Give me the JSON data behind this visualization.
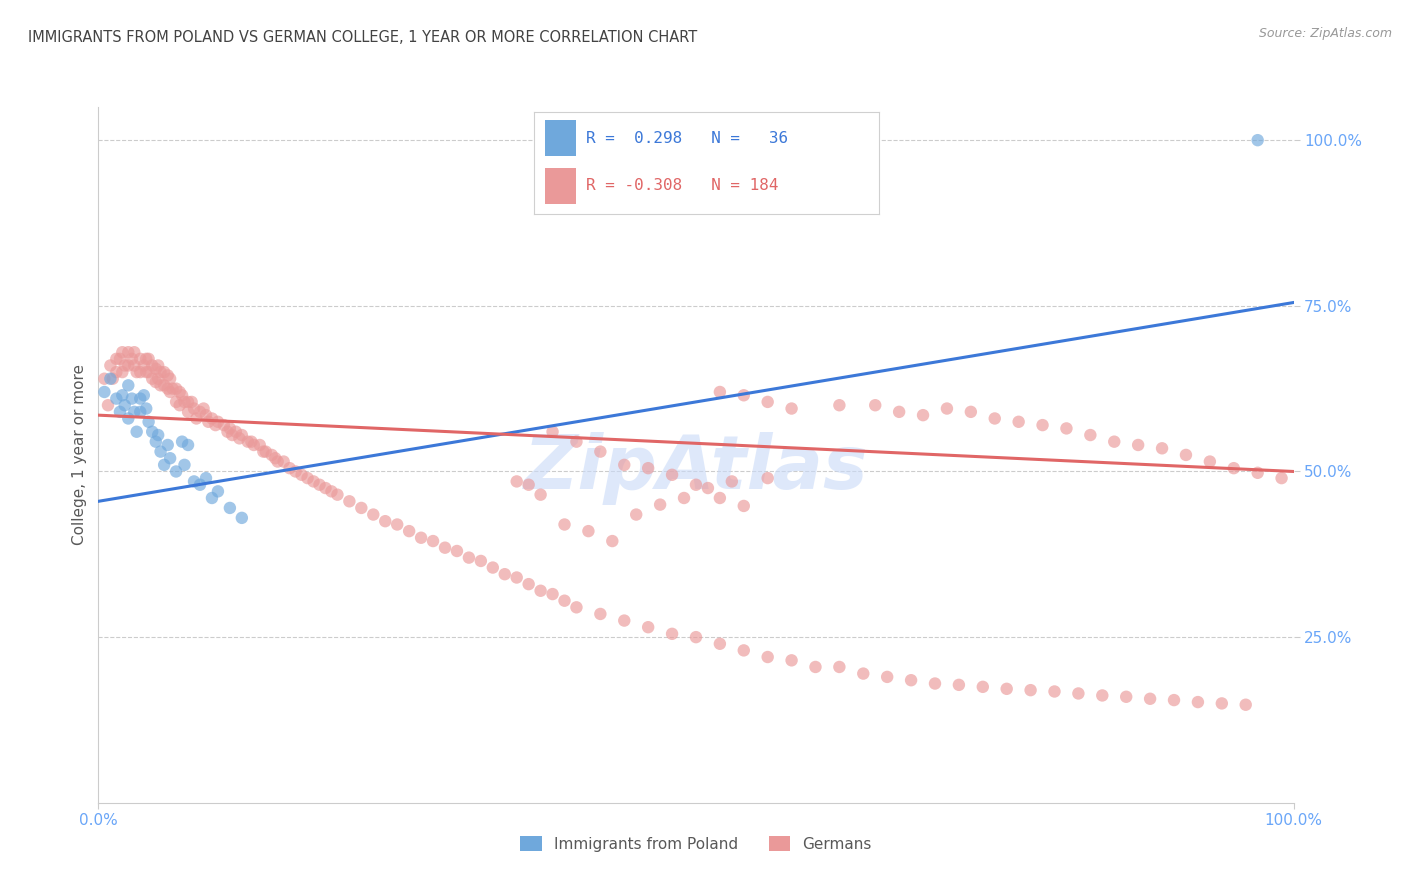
{
  "title": "IMMIGRANTS FROM POLAND VS GERMAN COLLEGE, 1 YEAR OR MORE CORRELATION CHART",
  "source_text": "Source: ZipAtlas.com",
  "ylabel": "College, 1 year or more",
  "xlim": [
    0.0,
    1.0
  ],
  "ylim": [
    0.0,
    1.05
  ],
  "x_tick_labels": [
    "0.0%",
    "100.0%"
  ],
  "x_tick_positions": [
    0.0,
    1.0
  ],
  "y_tick_labels": [
    "25.0%",
    "50.0%",
    "75.0%",
    "100.0%"
  ],
  "y_tick_positions": [
    0.25,
    0.5,
    0.75,
    1.0
  ],
  "color_blue": "#6fa8dc",
  "color_pink": "#ea9999",
  "color_blue_line": "#3c78d8",
  "color_pink_line": "#e06666",
  "title_color": "#434343",
  "source_color": "#999999",
  "axis_label_color": "#595959",
  "tick_label_color": "#6aa6f8",
  "grid_color": "#cccccc",
  "watermark_color": "#c9daf8",
  "background_color": "#ffffff",
  "blue_line_y_start": 0.455,
  "blue_line_y_end": 0.755,
  "pink_line_y_start": 0.585,
  "pink_line_y_end": 0.5,
  "marker_size": 80,
  "marker_alpha": 0.65,
  "line_width": 2.2,
  "blue_scatter_x": [
    0.005,
    0.01,
    0.015,
    0.018,
    0.02,
    0.022,
    0.025,
    0.025,
    0.028,
    0.03,
    0.032,
    0.035,
    0.035,
    0.038,
    0.04,
    0.042,
    0.045,
    0.048,
    0.05,
    0.052,
    0.055,
    0.058,
    0.06,
    0.065,
    0.07,
    0.072,
    0.075,
    0.08,
    0.085,
    0.09,
    0.095,
    0.1,
    0.11,
    0.12,
    0.97
  ],
  "blue_scatter_y": [
    0.62,
    0.64,
    0.61,
    0.59,
    0.615,
    0.6,
    0.63,
    0.58,
    0.61,
    0.59,
    0.56,
    0.61,
    0.59,
    0.615,
    0.595,
    0.575,
    0.56,
    0.545,
    0.555,
    0.53,
    0.51,
    0.54,
    0.52,
    0.5,
    0.545,
    0.51,
    0.54,
    0.485,
    0.48,
    0.49,
    0.46,
    0.47,
    0.445,
    0.43,
    1.0
  ],
  "pink_scatter_x": [
    0.005,
    0.008,
    0.01,
    0.012,
    0.015,
    0.015,
    0.018,
    0.02,
    0.02,
    0.022,
    0.025,
    0.025,
    0.028,
    0.03,
    0.03,
    0.032,
    0.035,
    0.035,
    0.038,
    0.04,
    0.04,
    0.042,
    0.042,
    0.045,
    0.045,
    0.048,
    0.048,
    0.05,
    0.05,
    0.052,
    0.052,
    0.055,
    0.055,
    0.058,
    0.058,
    0.06,
    0.06,
    0.062,
    0.065,
    0.065,
    0.068,
    0.068,
    0.07,
    0.072,
    0.075,
    0.075,
    0.078,
    0.08,
    0.082,
    0.085,
    0.088,
    0.09,
    0.092,
    0.095,
    0.098,
    0.1,
    0.105,
    0.108,
    0.11,
    0.112,
    0.115,
    0.118,
    0.12,
    0.125,
    0.128,
    0.13,
    0.135,
    0.138,
    0.14,
    0.145,
    0.148,
    0.15,
    0.155,
    0.16,
    0.165,
    0.17,
    0.175,
    0.18,
    0.185,
    0.19,
    0.195,
    0.2,
    0.21,
    0.22,
    0.23,
    0.24,
    0.25,
    0.26,
    0.27,
    0.28,
    0.29,
    0.3,
    0.31,
    0.32,
    0.33,
    0.34,
    0.35,
    0.36,
    0.37,
    0.38,
    0.39,
    0.4,
    0.42,
    0.44,
    0.46,
    0.48,
    0.5,
    0.52,
    0.54,
    0.56,
    0.58,
    0.6,
    0.62,
    0.64,
    0.66,
    0.68,
    0.7,
    0.72,
    0.74,
    0.76,
    0.78,
    0.8,
    0.82,
    0.84,
    0.86,
    0.88,
    0.9,
    0.92,
    0.94,
    0.96,
    0.62,
    0.65,
    0.67,
    0.69,
    0.71,
    0.73,
    0.75,
    0.77,
    0.79,
    0.81,
    0.83,
    0.85,
    0.87,
    0.89,
    0.91,
    0.93,
    0.95,
    0.97,
    0.99,
    0.38,
    0.4,
    0.42,
    0.44,
    0.35,
    0.36,
    0.37,
    0.46,
    0.48,
    0.5,
    0.52,
    0.54,
    0.52,
    0.54,
    0.56,
    0.58,
    0.56,
    0.53,
    0.51,
    0.49,
    0.47,
    0.45,
    0.39,
    0.41,
    0.43
  ],
  "pink_scatter_y": [
    0.64,
    0.6,
    0.66,
    0.64,
    0.67,
    0.65,
    0.67,
    0.68,
    0.65,
    0.66,
    0.68,
    0.66,
    0.67,
    0.68,
    0.66,
    0.65,
    0.67,
    0.65,
    0.66,
    0.67,
    0.65,
    0.67,
    0.65,
    0.66,
    0.64,
    0.655,
    0.635,
    0.66,
    0.64,
    0.65,
    0.63,
    0.65,
    0.63,
    0.645,
    0.625,
    0.64,
    0.62,
    0.625,
    0.625,
    0.605,
    0.62,
    0.6,
    0.615,
    0.605,
    0.605,
    0.59,
    0.605,
    0.595,
    0.58,
    0.59,
    0.595,
    0.585,
    0.575,
    0.58,
    0.57,
    0.575,
    0.57,
    0.56,
    0.565,
    0.555,
    0.56,
    0.55,
    0.555,
    0.545,
    0.545,
    0.54,
    0.54,
    0.53,
    0.53,
    0.525,
    0.52,
    0.515,
    0.515,
    0.505,
    0.5,
    0.495,
    0.49,
    0.485,
    0.48,
    0.475,
    0.47,
    0.465,
    0.455,
    0.445,
    0.435,
    0.425,
    0.42,
    0.41,
    0.4,
    0.395,
    0.385,
    0.38,
    0.37,
    0.365,
    0.355,
    0.345,
    0.34,
    0.33,
    0.32,
    0.315,
    0.305,
    0.295,
    0.285,
    0.275,
    0.265,
    0.255,
    0.25,
    0.24,
    0.23,
    0.22,
    0.215,
    0.205,
    0.205,
    0.195,
    0.19,
    0.185,
    0.18,
    0.178,
    0.175,
    0.172,
    0.17,
    0.168,
    0.165,
    0.162,
    0.16,
    0.157,
    0.155,
    0.152,
    0.15,
    0.148,
    0.6,
    0.6,
    0.59,
    0.585,
    0.595,
    0.59,
    0.58,
    0.575,
    0.57,
    0.565,
    0.555,
    0.545,
    0.54,
    0.535,
    0.525,
    0.515,
    0.505,
    0.498,
    0.49,
    0.56,
    0.545,
    0.53,
    0.51,
    0.485,
    0.48,
    0.465,
    0.505,
    0.495,
    0.48,
    0.46,
    0.448,
    0.62,
    0.615,
    0.605,
    0.595,
    0.49,
    0.485,
    0.475,
    0.46,
    0.45,
    0.435,
    0.42,
    0.41,
    0.395
  ]
}
